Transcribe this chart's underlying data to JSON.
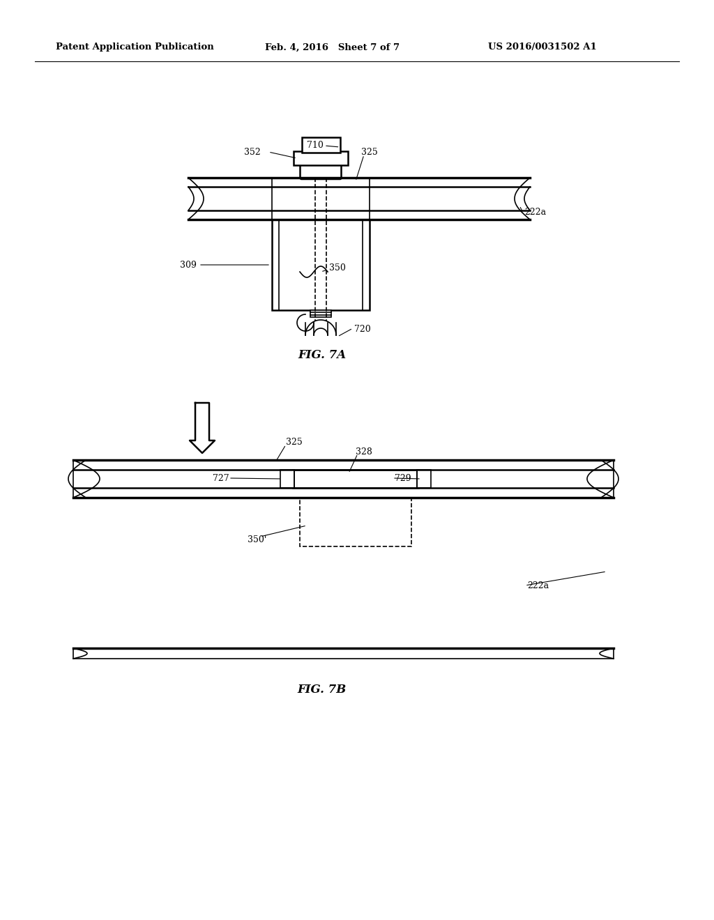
{
  "bg_color": "#ffffff",
  "line_color": "#000000",
  "header_left": "Patent Application Publication",
  "header_mid": "Feb. 4, 2016   Sheet 7 of 7",
  "header_right": "US 2016/0031502 A1",
  "fig7a_label": "FIG. 7A",
  "fig7b_label": "FIG. 7B"
}
